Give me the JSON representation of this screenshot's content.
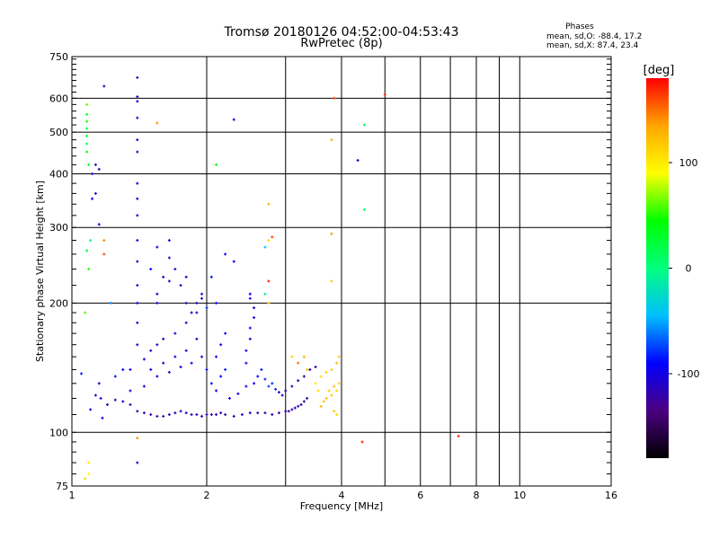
{
  "chart_data": {
    "type": "scatter",
    "title": "Tromsø 20180126 04:52:00-04:53:43",
    "subtitle": "RwPretec (8p)",
    "xlabel": "Frequency [MHz]",
    "ylabel": "Stationary phase Virtual Height [km]",
    "xscale": "log",
    "yscale": "log",
    "xlim": [
      1,
      16
    ],
    "ylim": [
      75,
      750
    ],
    "xticks": [
      1,
      2,
      4,
      6,
      8,
      10,
      16
    ],
    "xminor": [
      3,
      5,
      7,
      9
    ],
    "yticks": [
      75,
      100,
      200,
      300,
      400,
      500,
      600,
      750
    ],
    "grid": true,
    "stats": {
      "heading": "Phases",
      "line1": "mean, sd,O: -88.4, 17.2",
      "line2": "mean, sd,X:  87.4, 23.4"
    },
    "colorbar": {
      "label": "[deg]",
      "min": -180,
      "max": 180,
      "ticks": [
        100,
        0,
        -100
      ],
      "colors": [
        "#000000",
        "#4b0082",
        "#0000ff",
        "#00bfff",
        "#00ff7f",
        "#00ff00",
        "#ffff00",
        "#ffa500",
        "#ff0000"
      ],
      "position": "right"
    },
    "series": [
      {
        "name": "",
        "points": [
          [
            1.1,
            113,
            -110
          ],
          [
            1.13,
            122,
            -105
          ],
          [
            1.16,
            120,
            -100
          ],
          [
            1.2,
            116,
            -112
          ],
          [
            1.25,
            119,
            -108
          ],
          [
            1.3,
            118,
            -104
          ],
          [
            1.35,
            116,
            -115
          ],
          [
            1.4,
            112,
            -120
          ],
          [
            1.45,
            111,
            -118
          ],
          [
            1.5,
            110,
            -122
          ],
          [
            1.55,
            109,
            -125
          ],
          [
            1.6,
            109,
            -120
          ],
          [
            1.65,
            110,
            -118
          ],
          [
            1.7,
            111,
            -115
          ],
          [
            1.75,
            112,
            -118
          ],
          [
            1.8,
            111,
            -112
          ],
          [
            1.85,
            110,
            -115
          ],
          [
            1.9,
            110,
            -118
          ],
          [
            1.95,
            109,
            -120
          ],
          [
            2.0,
            110,
            -118
          ],
          [
            2.05,
            110,
            -115
          ],
          [
            2.1,
            110,
            -120
          ],
          [
            2.15,
            111,
            -118
          ],
          [
            2.2,
            110,
            -125
          ],
          [
            2.3,
            109,
            -122
          ],
          [
            2.4,
            110,
            -120
          ],
          [
            2.5,
            111,
            -118
          ],
          [
            2.6,
            111,
            -115
          ],
          [
            2.7,
            111,
            -120
          ],
          [
            2.8,
            110,
            -118
          ],
          [
            2.9,
            111,
            -122
          ],
          [
            3.0,
            112,
            -120
          ],
          [
            3.05,
            112,
            -125
          ],
          [
            3.1,
            113,
            -118
          ],
          [
            3.15,
            114,
            -120
          ],
          [
            3.2,
            115,
            -122
          ],
          [
            3.25,
            116,
            -118
          ],
          [
            3.3,
            118,
            -125
          ],
          [
            3.35,
            120,
            -120
          ],
          [
            1.35,
            125,
            -100
          ],
          [
            1.45,
            128,
            -105
          ],
          [
            1.5,
            140,
            -110
          ],
          [
            1.55,
            135,
            -100
          ],
          [
            1.6,
            145,
            -108
          ],
          [
            1.65,
            138,
            -112
          ],
          [
            1.7,
            150,
            -105
          ],
          [
            1.75,
            142,
            -100
          ],
          [
            1.8,
            155,
            -110
          ],
          [
            1.85,
            145,
            -108
          ],
          [
            1.9,
            165,
            -112
          ],
          [
            1.95,
            150,
            -105
          ],
          [
            1.5,
            155,
            -115
          ],
          [
            1.55,
            160,
            -110
          ],
          [
            1.6,
            165,
            -105
          ],
          [
            1.7,
            170,
            -108
          ],
          [
            1.8,
            180,
            -112
          ],
          [
            1.85,
            190,
            -110
          ],
          [
            1.9,
            200,
            -108
          ],
          [
            1.95,
            210,
            -112
          ],
          [
            1.75,
            220,
            -110
          ],
          [
            1.8,
            230,
            -112
          ],
          [
            1.55,
            210,
            -108
          ],
          [
            1.6,
            230,
            -105
          ],
          [
            1.65,
            225,
            -110
          ],
          [
            1.7,
            240,
            -112
          ],
          [
            1.8,
            200,
            -110
          ],
          [
            1.9,
            190,
            -112
          ],
          [
            1.95,
            205,
            -108
          ],
          [
            2.0,
            195,
            -80
          ],
          [
            2.0,
            140,
            -90
          ],
          [
            2.05,
            130,
            -85
          ],
          [
            2.1,
            125,
            -95
          ],
          [
            2.15,
            135,
            -90
          ],
          [
            2.2,
            140,
            -85
          ],
          [
            2.25,
            120,
            -100
          ],
          [
            2.35,
            123,
            -105
          ],
          [
            2.45,
            128,
            -100
          ],
          [
            2.55,
            130,
            -95
          ],
          [
            2.6,
            135,
            -90
          ],
          [
            2.65,
            140,
            -85
          ],
          [
            2.7,
            133,
            -80
          ],
          [
            2.75,
            128,
            -75
          ],
          [
            2.8,
            130,
            -78
          ],
          [
            2.85,
            126,
            -82
          ],
          [
            2.9,
            124,
            -110
          ],
          [
            2.95,
            122,
            -115
          ],
          [
            3.0,
            125,
            -120
          ],
          [
            3.1,
            128,
            -118
          ],
          [
            3.2,
            132,
            -120
          ],
          [
            3.3,
            135,
            -118
          ],
          [
            3.4,
            140,
            -115
          ],
          [
            3.5,
            142,
            -112
          ],
          [
            2.45,
            155,
            -100
          ],
          [
            2.5,
            165,
            -105
          ],
          [
            2.5,
            175,
            -102
          ],
          [
            2.55,
            185,
            -98
          ],
          [
            2.55,
            195,
            -105
          ],
          [
            2.5,
            205,
            -100
          ],
          [
            2.5,
            210,
            -95
          ],
          [
            2.45,
            145,
            -100
          ],
          [
            2.1,
            150,
            -95
          ],
          [
            2.15,
            160,
            -100
          ],
          [
            2.2,
            170,
            -90
          ],
          [
            2.1,
            200,
            -88
          ],
          [
            2.05,
            230,
            -85
          ],
          [
            2.2,
            260,
            -90
          ],
          [
            2.3,
            250,
            -95
          ],
          [
            1.55,
            200,
            -95
          ],
          [
            1.5,
            240,
            -90
          ],
          [
            1.55,
            270,
            -95
          ],
          [
            1.65,
            280,
            -100
          ],
          [
            1.65,
            255,
            -110
          ],
          [
            1.35,
            140,
            -95
          ],
          [
            1.3,
            140,
            -90
          ],
          [
            1.25,
            135,
            -85
          ],
          [
            1.45,
            148,
            -100
          ],
          [
            1.4,
            160,
            -105
          ],
          [
            1.4,
            180,
            -108
          ],
          [
            1.4,
            200,
            -100
          ],
          [
            1.4,
            220,
            -110
          ],
          [
            1.4,
            250,
            -112
          ],
          [
            1.4,
            280,
            -108
          ],
          [
            1.4,
            320,
            -112
          ],
          [
            1.4,
            350,
            -110
          ],
          [
            1.4,
            380,
            -105
          ],
          [
            1.4,
            450,
            -108
          ],
          [
            1.4,
            480,
            -112
          ],
          [
            1.4,
            540,
            -110
          ],
          [
            1.4,
            590,
            -112
          ],
          [
            1.4,
            605,
            -115
          ],
          [
            1.4,
            670,
            -120
          ],
          [
            1.4,
            85,
            -110
          ],
          [
            1.15,
            130,
            -100
          ],
          [
            1.17,
            108,
            -95
          ],
          [
            1.05,
            137,
            -85
          ],
          [
            1.13,
            360,
            -110
          ],
          [
            1.15,
            410,
            -115
          ],
          [
            1.13,
            420,
            -112
          ],
          [
            1.18,
            640,
            -100
          ],
          [
            1.15,
            305,
            -105
          ],
          [
            1.11,
            400,
            -95
          ],
          [
            1.22,
            200,
            -60
          ],
          [
            1.11,
            350,
            -100
          ],
          [
            1.08,
            580,
            60
          ],
          [
            1.08,
            550,
            40
          ],
          [
            1.08,
            530,
            50
          ],
          [
            1.08,
            510,
            20
          ],
          [
            1.08,
            490,
            30
          ],
          [
            1.08,
            470,
            10
          ],
          [
            1.08,
            450,
            45
          ],
          [
            1.09,
            420,
            30
          ],
          [
            1.08,
            265,
            25
          ],
          [
            1.09,
            240,
            50
          ],
          [
            1.1,
            280,
            5
          ],
          [
            1.07,
            190,
            60
          ],
          [
            1.09,
            85,
            100
          ],
          [
            1.09,
            80,
            90
          ],
          [
            1.07,
            78,
            110
          ],
          [
            1.18,
            280,
            145
          ],
          [
            1.18,
            260,
            160
          ],
          [
            1.4,
            97,
            140
          ],
          [
            1.55,
            525,
            140
          ],
          [
            2.1,
            420,
            40
          ],
          [
            2.3,
            535,
            -110
          ],
          [
            2.75,
            340,
            130
          ],
          [
            2.75,
            280,
            110
          ],
          [
            2.8,
            285,
            160
          ],
          [
            2.75,
            225,
            170
          ],
          [
            2.75,
            200,
            120
          ],
          [
            2.7,
            270,
            -40
          ],
          [
            2.7,
            210,
            -20
          ],
          [
            3.2,
            145,
            150
          ],
          [
            3.3,
            150,
            130
          ],
          [
            3.35,
            140,
            120
          ],
          [
            3.1,
            150,
            115
          ],
          [
            3.5,
            130,
            100
          ],
          [
            3.55,
            125,
            110
          ],
          [
            3.6,
            115,
            130
          ],
          [
            3.65,
            118,
            120
          ],
          [
            3.7,
            120,
            125
          ],
          [
            3.75,
            125,
            115
          ],
          [
            3.8,
            122,
            118
          ],
          [
            3.85,
            128,
            122
          ],
          [
            3.9,
            125,
            112
          ],
          [
            3.95,
            130,
            110
          ],
          [
            3.6,
            135,
            108
          ],
          [
            3.7,
            138,
            112
          ],
          [
            3.8,
            140,
            118
          ],
          [
            3.9,
            145,
            122
          ],
          [
            3.95,
            150,
            115
          ],
          [
            3.85,
            112,
            120
          ],
          [
            3.9,
            110,
            110
          ],
          [
            3.8,
            225,
            120
          ],
          [
            3.8,
            290,
            140
          ],
          [
            3.85,
            600,
            160
          ],
          [
            3.8,
            480,
            130
          ],
          [
            4.35,
            430,
            -110
          ],
          [
            4.5,
            520,
            15
          ],
          [
            4.5,
            330,
            5
          ],
          [
            4.45,
            95,
            170
          ],
          [
            5.0,
            612,
            170
          ],
          [
            7.3,
            98,
            170
          ]
        ]
      }
    ]
  }
}
